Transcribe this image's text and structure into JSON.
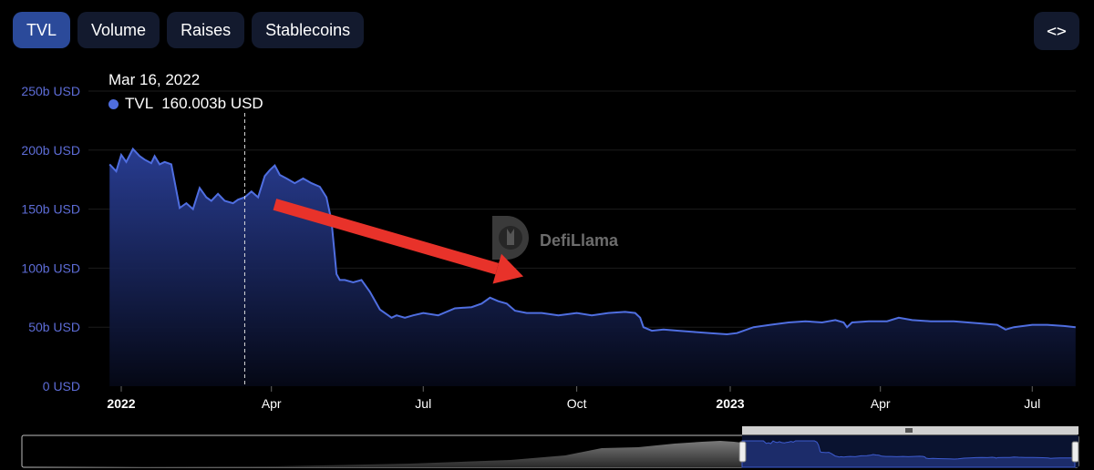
{
  "tabs": [
    {
      "label": "TVL",
      "active": true
    },
    {
      "label": "Volume",
      "active": false
    },
    {
      "label": "Raises",
      "active": false
    },
    {
      "label": "Stablecoins",
      "active": false
    }
  ],
  "embed_button": {
    "icon": "code-brackets-icon",
    "label": "<>"
  },
  "tooltip": {
    "date": "Mar 16, 2022",
    "series": "TVL",
    "value": "160.003b USD"
  },
  "watermark": {
    "text": "DefiLlama",
    "icon": "llama-logo-icon"
  },
  "colors": {
    "line": "#4f6ee0",
    "axis_label": "#5d6cd6",
    "annotation_arrow": "#e8322a"
  },
  "chart_data": {
    "type": "area",
    "series": [
      {
        "name": "TVL",
        "x": [
          "2021-12-25",
          "2021-12-29",
          "2022-01-01",
          "2022-01-04",
          "2022-01-08",
          "2022-01-12",
          "2022-01-15",
          "2022-01-19",
          "2022-01-21",
          "2022-01-24",
          "2022-01-27",
          "2022-01-31",
          "2022-02-05",
          "2022-02-09",
          "2022-02-13",
          "2022-02-17",
          "2022-02-21",
          "2022-02-24",
          "2022-02-28",
          "2022-03-04",
          "2022-03-09",
          "2022-03-12",
          "2022-03-16",
          "2022-03-20",
          "2022-03-24",
          "2022-03-28",
          "2022-03-31",
          "2022-04-03",
          "2022-04-06",
          "2022-04-10",
          "2022-04-15",
          "2022-04-20",
          "2022-04-25",
          "2022-04-30",
          "2022-05-04",
          "2022-05-07",
          "2022-05-09",
          "2022-05-10",
          "2022-05-12",
          "2022-05-15",
          "2022-05-20",
          "2022-05-25",
          "2022-05-30",
          "2022-06-05",
          "2022-06-10",
          "2022-06-12",
          "2022-06-15",
          "2022-06-20",
          "2022-06-25",
          "2022-07-01",
          "2022-07-10",
          "2022-07-20",
          "2022-07-30",
          "2022-08-05",
          "2022-08-10",
          "2022-08-15",
          "2022-08-20",
          "2022-08-25",
          "2022-09-01",
          "2022-09-10",
          "2022-09-20",
          "2022-10-01",
          "2022-10-10",
          "2022-10-20",
          "2022-10-30",
          "2022-11-05",
          "2022-11-08",
          "2022-11-10",
          "2022-11-15",
          "2022-11-22",
          "2022-12-01",
          "2022-12-10",
          "2022-12-20",
          "2022-12-30",
          "2023-01-05",
          "2023-01-15",
          "2023-01-25",
          "2023-02-05",
          "2023-02-15",
          "2023-02-25",
          "2023-03-05",
          "2023-03-10",
          "2023-03-12",
          "2023-03-15",
          "2023-03-25",
          "2023-04-05",
          "2023-04-12",
          "2023-04-20",
          "2023-05-01",
          "2023-05-15",
          "2023-06-01",
          "2023-06-10",
          "2023-06-15",
          "2023-06-20",
          "2023-07-01",
          "2023-07-10",
          "2023-07-20",
          "2023-07-27"
        ],
        "values": [
          188,
          182,
          196,
          190,
          201,
          195,
          192,
          189,
          195,
          188,
          190,
          188,
          151,
          155,
          150,
          168,
          160,
          157,
          163,
          157,
          155,
          158,
          160,
          165,
          160,
          178,
          183,
          187,
          179,
          176,
          172,
          176,
          172,
          169,
          160,
          140,
          110,
          95,
          90,
          90,
          88,
          90,
          80,
          65,
          60,
          58,
          60,
          58,
          60,
          62,
          60,
          66,
          67,
          70,
          75,
          72,
          70,
          64,
          62,
          62,
          60,
          62,
          60,
          62,
          63,
          62,
          58,
          50,
          47,
          48,
          47,
          46,
          45,
          44,
          45,
          50,
          52,
          54,
          55,
          54,
          56,
          54,
          50,
          54,
          55,
          55,
          58,
          56,
          55,
          55,
          53,
          52,
          48,
          50,
          52,
          52,
          51,
          50
        ]
      }
    ],
    "ylim": [
      0,
      250
    ],
    "y_ticks": [
      {
        "value": 0,
        "label": "0 USD"
      },
      {
        "value": 50,
        "label": "50b USD"
      },
      {
        "value": 100,
        "label": "100b USD"
      },
      {
        "value": 150,
        "label": "150b USD"
      },
      {
        "value": 200,
        "label": "200b USD"
      },
      {
        "value": 250,
        "label": "250b USD"
      }
    ],
    "x_ticks": [
      {
        "date": "2022-01-01",
        "label": "2022",
        "year": true
      },
      {
        "date": "2022-04-01",
        "label": "Apr",
        "year": false
      },
      {
        "date": "2022-07-01",
        "label": "Jul",
        "year": false
      },
      {
        "date": "2022-10-01",
        "label": "Oct",
        "year": false
      },
      {
        "date": "2023-01-01",
        "label": "2023",
        "year": true
      },
      {
        "date": "2023-04-01",
        "label": "Apr",
        "year": false
      },
      {
        "date": "2023-07-01",
        "label": "Jul",
        "year": false
      }
    ],
    "hover_date": "2022-03-16",
    "grid": true,
    "legend": "top-left tooltip",
    "annotation": {
      "type": "arrow",
      "color": "#e8322a",
      "from": {
        "date": "2022-04-03",
        "value": 154
      },
      "to": {
        "date": "2022-08-30",
        "value": 93
      }
    },
    "navigator": {
      "visible": true,
      "selected_from": "2022-01-01",
      "selected_to": "2023-07-27"
    }
  }
}
